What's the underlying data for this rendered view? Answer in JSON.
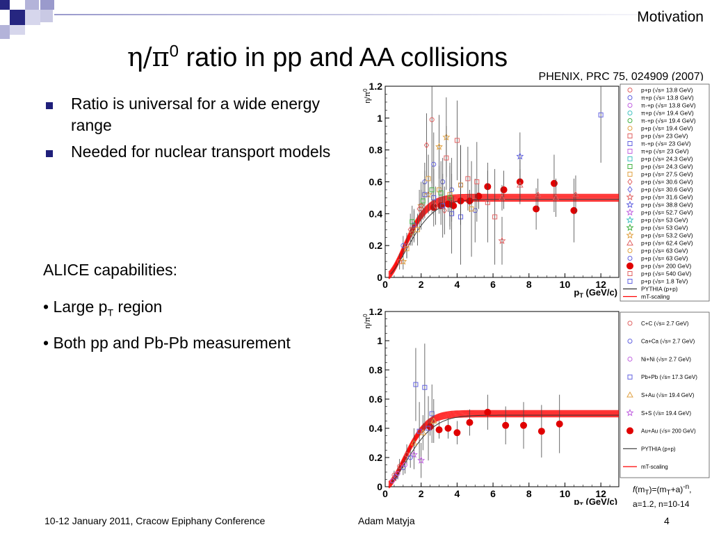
{
  "header": {
    "section_label": "Motivation",
    "title_eta": "η",
    "title_slash": "/",
    "title_pi": "π",
    "title_sup": "0",
    "title_rest": " ratio in pp and AA collisions",
    "citation": "PHENIX, PRC 75, 024909 (2007)"
  },
  "bullets": [
    "Ratio is universal for a wide energy range",
    "Needed for nuclear transport models"
  ],
  "alice": {
    "heading": "ALICE capabilities:",
    "cap1_pre": "• Large p",
    "cap1_sub": "T",
    "cap1_post": " region",
    "cap2": "• Both pp and Pb-Pb  measurement"
  },
  "formula": {
    "f": "f",
    "line1": "(m",
    "sub1": "T",
    "mid": ")=(m",
    "sub2": "T",
    "end": "+a)",
    "sup": "-n",
    "comma": ",",
    "line2": "a=1.2, n=10-14"
  },
  "footer": {
    "left": "10-12 January 2011, Cracow Epiphany Conference",
    "middle": "Adam Matyja",
    "page": "4"
  },
  "colors": {
    "bullet": "#1f1f7a",
    "fit_curve": "#ff0000",
    "data_red": "#e00000",
    "deco_dark": "#262680",
    "deco_light": "#b3b3d9"
  },
  "chart_data": [
    {
      "type": "scatter",
      "title": "",
      "xlabel": "pT (GeV/c)",
      "ylabel": "η/π0",
      "xlim": [
        0,
        13
      ],
      "ylim": [
        0,
        1.2
      ],
      "xticks": [
        "0",
        "2",
        "4",
        "6",
        "8",
        "10",
        "12"
      ],
      "yticks": [
        "0",
        "0.2",
        "0.4",
        "0.6",
        "0.8",
        "1",
        "1.2"
      ],
      "grid": false,
      "legend_position": "right",
      "legend": [
        {
          "label": "p+p (√s= 13.8 GeV)",
          "marker": "circle",
          "color": "#e06060"
        },
        {
          "label": "π+p (√s= 13.8 GeV)",
          "marker": "circle",
          "color": "#6060e0"
        },
        {
          "label": "π-+p (√s= 13.8 GeV)",
          "marker": "circle",
          "color": "#c060e0"
        },
        {
          "label": "π+p (√s= 19.4 GeV)",
          "marker": "circle",
          "color": "#40c0c0"
        },
        {
          "label": "π-+p (√s= 19.4 GeV)",
          "marker": "circle",
          "color": "#40b040"
        },
        {
          "label": "p+p (√s= 19.4 GeV)",
          "marker": "circle",
          "color": "#e0a040"
        },
        {
          "label": "p+p (√s= 23 GeV)",
          "marker": "square",
          "color": "#e06060"
        },
        {
          "label": "π-+p (√s= 23 GeV)",
          "marker": "square",
          "color": "#6060e0"
        },
        {
          "label": "π+p (√s= 23 GeV)",
          "marker": "square",
          "color": "#c060e0"
        },
        {
          "label": "p+p (√s= 24.3 GeV)",
          "marker": "square",
          "color": "#40c0c0"
        },
        {
          "label": "p+p (√s= 24.3 GeV)",
          "marker": "square",
          "color": "#40b040"
        },
        {
          "label": "p+p (√s= 27.5 GeV)",
          "marker": "square",
          "color": "#e0a040"
        },
        {
          "label": "p+p (√s= 30.6 GeV)",
          "marker": "diamond",
          "color": "#e06060"
        },
        {
          "label": "p+p (√s= 30.6 GeV)",
          "marker": "diamond",
          "color": "#6060e0"
        },
        {
          "label": "p+p (√s= 31.6 GeV)",
          "marker": "star",
          "color": "#e06060"
        },
        {
          "label": "p+p (√s= 38.8 GeV)",
          "marker": "star",
          "color": "#6060e0"
        },
        {
          "label": "p+p (√s= 52.7 GeV)",
          "marker": "star",
          "color": "#c060e0"
        },
        {
          "label": "p+p (√s= 53 GeV)",
          "marker": "star",
          "color": "#40c0c0"
        },
        {
          "label": "p+p (√s= 53 GeV)",
          "marker": "star",
          "color": "#40b040"
        },
        {
          "label": "p+p (√s= 53.2 GeV)",
          "marker": "star",
          "color": "#e0a040"
        },
        {
          "label": "p+p (√s= 62.4 GeV)",
          "marker": "triangle",
          "color": "#e06060"
        },
        {
          "label": "p+p (√s= 63 GeV)",
          "marker": "circle",
          "color": "#e0a040"
        },
        {
          "label": "p+p (√s= 63 GeV)",
          "marker": "circle",
          "color": "#6060e0"
        },
        {
          "label": "p+p (√s= 200 GeV)",
          "marker": "filled-circle",
          "color": "#e00000"
        },
        {
          "label": "p+p (√s= 540 GeV)",
          "marker": "square",
          "color": "#e06060"
        },
        {
          "label": "p+p (√s= 1.8 TeV)",
          "marker": "square",
          "color": "#6060e0"
        },
        {
          "label": "PYTHIA (p+p)",
          "marker": "line",
          "color": "#333333"
        },
        {
          "label": "mT-scaling",
          "marker": "line",
          "color": "#ff0000"
        }
      ],
      "series": [
        {
          "name": "p+p (√s= 200 GeV)",
          "marker": "filled-circle",
          "color": "#e00000",
          "x": [
            2.7,
            3.1,
            3.5,
            3.8,
            4.2,
            4.7,
            5.2,
            5.7,
            6.6,
            7.5,
            8.4,
            9.4,
            10.5
          ],
          "y": [
            0.44,
            0.45,
            0.46,
            0.45,
            0.48,
            0.48,
            0.51,
            0.57,
            0.55,
            0.6,
            0.43,
            0.59,
            0.42
          ],
          "err": [
            0.05,
            0.05,
            0.05,
            0.06,
            0.06,
            0.07,
            0.08,
            0.1,
            0.12,
            0.14,
            0.13,
            0.18,
            0.2
          ]
        },
        {
          "name": "p+p (√s= 1.8 TeV)",
          "marker": "square",
          "color": "#6060e0",
          "x": [
            12.0
          ],
          "y": [
            1.02
          ],
          "err": [
            0.3
          ]
        },
        {
          "name": "p+p (√s= 62.4 GeV)",
          "marker": "triangle",
          "color": "#e06060",
          "x": [
            6.5,
            7.5,
            8.5,
            9.5,
            10.6
          ],
          "y": [
            0.5,
            0.58,
            0.52,
            0.5,
            0.52
          ],
          "err": [
            0.08,
            0.1,
            0.1,
            0.12,
            0.12
          ]
        },
        {
          "name": "p+p (√s= 38.8 GeV)",
          "marker": "star",
          "color": "#6060e0",
          "x": [
            7.5
          ],
          "y": [
            0.76
          ],
          "err": [
            0.15
          ]
        },
        {
          "name": "p+p (√s= 31.6 GeV)",
          "marker": "star",
          "color": "#e06060",
          "x": [
            6.5
          ],
          "y": [
            0.23
          ],
          "err": [
            0.15
          ]
        },
        {
          "name": "p+p (√s= 53.2 GeV)",
          "marker": "star",
          "color": "#e0a040",
          "x": [
            1.0,
            1.5,
            2.0,
            2.4,
            3.0,
            3.4
          ],
          "y": [
            0.1,
            0.28,
            0.45,
            0.52,
            0.82,
            0.88
          ],
          "err": [
            0.05,
            0.08,
            0.1,
            0.12,
            0.2,
            0.25
          ]
        },
        {
          "name": "p+p (√s= 13.8 GeV)",
          "marker": "circle",
          "color": "#e06060",
          "x": [
            0.8,
            1.2,
            1.6,
            2.0,
            2.6
          ],
          "y": [
            0.1,
            0.2,
            0.32,
            0.45,
            0.99
          ],
          "err": [
            0.05,
            0.08,
            0.1,
            0.15,
            0.4
          ]
        },
        {
          "name": "p+p (√s= 30.6 GeV)",
          "marker": "diamond",
          "color": "#e06060",
          "x": [
            1.4,
            1.9,
            2.3,
            2.8,
            3.3
          ],
          "y": [
            0.3,
            0.43,
            0.83,
            0.45,
            0.42
          ],
          "err": [
            0.1,
            0.12,
            0.2,
            0.12,
            0.15
          ]
        },
        {
          "name": "π+p (√s= 13.8 GeV)",
          "marker": "circle",
          "color": "#6060e0",
          "x": [
            1.0,
            1.6,
            2.2,
            2.7,
            3.2,
            3.7,
            4.2,
            5.0
          ],
          "y": [
            0.2,
            0.33,
            0.6,
            0.71,
            0.6,
            0.55,
            0.58,
            0.42
          ],
          "err": [
            0.06,
            0.1,
            0.12,
            0.2,
            0.15,
            0.2,
            0.25,
            0.2
          ]
        },
        {
          "name": "π-+p (√s= 23 GeV)",
          "marker": "square",
          "color": "#6060e0",
          "x": [
            2.2,
            2.7,
            3.2,
            3.7,
            4.2
          ],
          "y": [
            0.52,
            0.5,
            0.45,
            0.4,
            0.38
          ],
          "err": [
            0.15,
            0.18,
            0.2,
            0.25,
            0.3
          ]
        },
        {
          "name": "p+p (√s= 27.5 GeV)",
          "marker": "square",
          "color": "#e0a040",
          "x": [
            1.2,
            1.8,
            2.4,
            3.0,
            3.6,
            4.2,
            4.8
          ],
          "y": [
            0.18,
            0.3,
            0.62,
            0.55,
            0.52,
            0.58,
            0.43
          ],
          "err": [
            0.06,
            0.1,
            0.15,
            0.15,
            0.2,
            0.25,
            0.3
          ]
        },
        {
          "name": "p+p (√s= 24.3 GeV)",
          "marker": "square",
          "color": "#40b040",
          "x": [
            1.5,
            2.1,
            2.6,
            3.1,
            3.6
          ],
          "y": [
            0.35,
            0.48,
            0.55,
            0.53,
            0.5
          ],
          "err": [
            0.1,
            0.12,
            0.15,
            0.2,
            0.2
          ]
        },
        {
          "name": "p+p (√s= 23 GeV)",
          "marker": "square",
          "color": "#e06060",
          "x": [
            3.4,
            4.0,
            4.6,
            5.1,
            5.7,
            6.1
          ],
          "y": [
            0.75,
            0.86,
            0.62,
            0.6,
            0.47,
            0.38
          ],
          "err": [
            0.2,
            0.25,
            0.2,
            0.25,
            0.25,
            0.3
          ]
        }
      ],
      "curves": [
        {
          "name": "mT-scaling",
          "color": "#ff0000",
          "plateau": 0.5
        },
        {
          "name": "PYTHIA (p+p)",
          "color": "#333333",
          "plateau": 0.49
        }
      ]
    },
    {
      "type": "scatter",
      "title": "",
      "xlabel": "pT (GeV/c)",
      "ylabel": "η/π0",
      "xlim": [
        0,
        13
      ],
      "ylim": [
        0,
        1.2
      ],
      "xticks": [
        "0",
        "2",
        "4",
        "6",
        "8",
        "10",
        "12"
      ],
      "yticks": [
        "0",
        "0.2",
        "0.4",
        "0.6",
        "0.8",
        "1",
        "1.2"
      ],
      "grid": false,
      "legend_position": "right",
      "legend": [
        {
          "label": "C+C (√s= 2.7 GeV)",
          "marker": "circle",
          "color": "#e06060"
        },
        {
          "label": "Ca+Ca (√s= 2.7 GeV)",
          "marker": "circle",
          "color": "#6060e0"
        },
        {
          "label": "Ni+Ni (√s= 2.7 GeV)",
          "marker": "circle",
          "color": "#c060e0"
        },
        {
          "label": "Pb+Pb (√s= 17.3 GeV)",
          "marker": "square",
          "color": "#6060e0"
        },
        {
          "label": "S+Au (√s= 19.4 GeV)",
          "marker": "triangle",
          "color": "#e0a040"
        },
        {
          "label": "S+S (√s= 19.4 GeV)",
          "marker": "star",
          "color": "#c060e0"
        },
        {
          "label": "Au+Au (√s= 200 GeV)",
          "marker": "filled-circle",
          "color": "#e00000"
        },
        {
          "label": "PYTHIA (p+p)",
          "marker": "line",
          "color": "#333333"
        },
        {
          "label": "mT-scaling",
          "marker": "line",
          "color": "#ff0000"
        }
      ],
      "series": [
        {
          "name": "Au+Au (√s= 200 GeV)",
          "marker": "filled-circle",
          "color": "#e00000",
          "x": [
            2.5,
            3.0,
            3.5,
            4.0,
            4.7,
            5.7,
            6.7,
            7.7,
            8.7,
            9.7
          ],
          "y": [
            0.41,
            0.39,
            0.4,
            0.37,
            0.44,
            0.51,
            0.42,
            0.42,
            0.38,
            0.43
          ],
          "err": [
            0.06,
            0.06,
            0.07,
            0.08,
            0.09,
            0.12,
            0.13,
            0.16,
            0.18,
            0.2
          ]
        },
        {
          "name": "Pb+Pb (√s= 17.3 GeV)",
          "marker": "square",
          "color": "#6060e0",
          "x": [
            1.7,
            2.2,
            2.6,
            1.9,
            2.4
          ],
          "y": [
            0.7,
            0.68,
            0.5,
            0.38,
            0.4
          ],
          "err": [
            0.25,
            0.3,
            0.2,
            0.2,
            0.22
          ]
        },
        {
          "name": "S+Au (√s= 19.4 GeV)",
          "marker": "triangle",
          "color": "#e0a040",
          "x": [
            1.6,
            2.1,
            2.7
          ],
          "y": [
            0.3,
            0.37,
            0.45
          ],
          "err": [
            0.1,
            0.12,
            0.15
          ]
        },
        {
          "name": "S+S (√s= 19.4 GeV)",
          "marker": "star",
          "color": "#c060e0",
          "x": [
            1.6,
            2.0
          ],
          "y": [
            0.22,
            0.18
          ],
          "err": [
            0.1,
            0.12
          ]
        },
        {
          "name": "C+C (√s= 2.7 GeV)",
          "marker": "circle",
          "color": "#e06060",
          "x": [
            0.5,
            0.8,
            1.2
          ],
          "y": [
            0.08,
            0.14,
            0.22
          ],
          "err": [
            0.03,
            0.05,
            0.07
          ]
        },
        {
          "name": "Ca+Ca (√s= 2.7 GeV)",
          "marker": "circle",
          "color": "#6060e0",
          "x": [
            0.6,
            1.0,
            1.4
          ],
          "y": [
            0.07,
            0.13,
            0.2
          ],
          "err": [
            0.03,
            0.05,
            0.07
          ]
        },
        {
          "name": "Ni+Ni (√s= 2.7 GeV)",
          "marker": "circle",
          "color": "#c060e0",
          "x": [
            0.4,
            0.7,
            1.1
          ],
          "y": [
            0.04,
            0.09,
            0.15
          ],
          "err": [
            0.02,
            0.04,
            0.06
          ]
        }
      ],
      "curves": [
        {
          "name": "mT-scaling",
          "color": "#ff0000",
          "plateau": 0.5
        },
        {
          "name": "PYTHIA (p+p)",
          "color": "#333333",
          "plateau": 0.49
        }
      ]
    }
  ]
}
